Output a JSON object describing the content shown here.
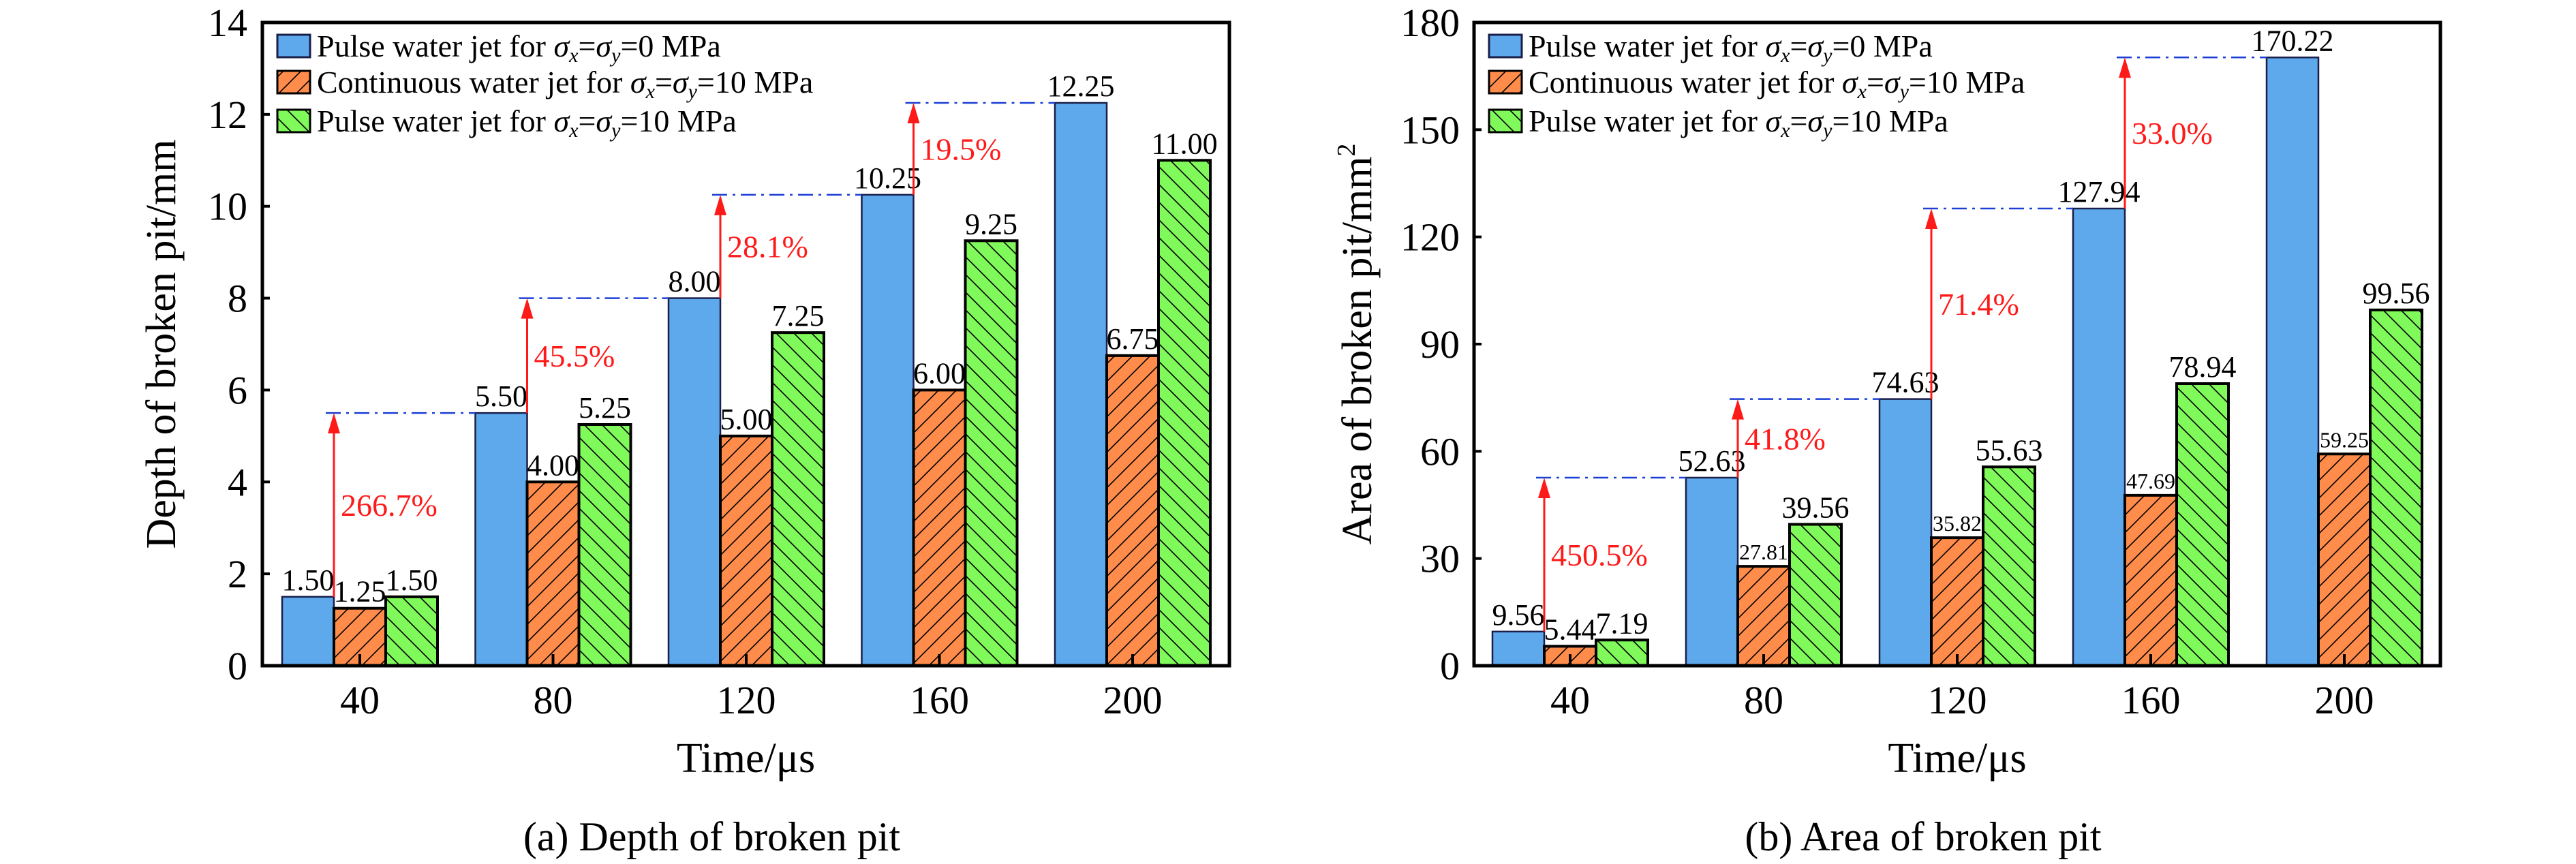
{
  "figure": {
    "panels": [
      "a",
      "b"
    ]
  },
  "chart_data": [
    {
      "id": "a",
      "type": "bar",
      "title": "",
      "caption": "(a) Depth of broken pit",
      "xlabel": "Time/μs",
      "ylabel": "Depth of broken pit/mm",
      "ylabel_superscript": "",
      "categories": [
        "40",
        "80",
        "120",
        "160",
        "200"
      ],
      "ylim": [
        0,
        14
      ],
      "yticks": [
        0,
        2,
        4,
        6,
        8,
        10,
        12,
        14
      ],
      "ytick_labels": [
        "0",
        "2",
        "4",
        "6",
        "8",
        "10",
        "12",
        "14"
      ],
      "grid": false,
      "legend_position": "top-left",
      "series": [
        {
          "name": "Pulse water jet for σx=σy=0 MPa",
          "legend_parts": {
            "prefix": "Pulse water jet for ",
            "value": "=0 MPa"
          },
          "color": "#5EA8EC",
          "hatch": "none",
          "values": [
            1.5,
            5.5,
            8.0,
            10.25,
            12.25
          ],
          "labels": [
            "1.50",
            "5.50",
            "8.00",
            "10.25",
            "12.25"
          ]
        },
        {
          "name": "Continuous water jet for σx=σy=10 MPa",
          "legend_parts": {
            "prefix": "Continuous water jet for ",
            "value": "=10 MPa"
          },
          "color": "#FF8C4A",
          "hatch": "forward",
          "values": [
            1.25,
            4.0,
            5.0,
            6.0,
            6.75
          ],
          "labels": [
            "1.25",
            "4.00",
            "5.00",
            "6.00",
            "6.75"
          ]
        },
        {
          "name": "Pulse water jet for σx=σy=10 MPa",
          "legend_parts": {
            "prefix": "Pulse water jet for ",
            "value": "=10 MPa"
          },
          "color": "#80F95A",
          "hatch": "backward",
          "values": [
            1.5,
            5.25,
            7.25,
            9.25,
            11.0
          ],
          "labels": [
            "1.50",
            "5.25",
            "7.25",
            "9.25",
            "11.00"
          ]
        }
      ],
      "annotations": [
        {
          "from_category": 0,
          "to_category": 1,
          "from_value": 1.5,
          "to_value": 5.5,
          "text": "266.7%"
        },
        {
          "from_category": 1,
          "to_category": 2,
          "from_value": 5.5,
          "to_value": 8.0,
          "text": "45.5%"
        },
        {
          "from_category": 2,
          "to_category": 3,
          "from_value": 8.0,
          "to_value": 10.25,
          "text": "28.1%"
        },
        {
          "from_category": 3,
          "to_category": 4,
          "from_value": 10.25,
          "to_value": 12.25,
          "text": "19.5%"
        }
      ],
      "small_orange_labels": false
    },
    {
      "id": "b",
      "type": "bar",
      "title": "",
      "caption": "(b) Area of broken pit",
      "xlabel": "Time/μs",
      "ylabel": "Area of broken pit/mm",
      "ylabel_superscript": "2",
      "categories": [
        "40",
        "80",
        "120",
        "160",
        "200"
      ],
      "ylim": [
        0,
        180
      ],
      "yticks": [
        0,
        30,
        60,
        90,
        120,
        150,
        180
      ],
      "ytick_labels": [
        "0",
        "30",
        "60",
        "90",
        "120",
        "150",
        "180"
      ],
      "grid": false,
      "legend_position": "top-left",
      "series": [
        {
          "name": "Pulse water jet for σx=σy=0 MPa",
          "legend_parts": {
            "prefix": "Pulse water jet for ",
            "value": "=0 MPa"
          },
          "color": "#5EA8EC",
          "hatch": "none",
          "values": [
            9.56,
            52.63,
            74.63,
            127.94,
            170.22
          ],
          "labels": [
            "9.56",
            "52.63",
            "74.63",
            "127.94",
            "170.22"
          ]
        },
        {
          "name": "Continuous water jet for σx=σy=10 MPa",
          "legend_parts": {
            "prefix": "Continuous water jet for ",
            "value": "=10 MPa"
          },
          "color": "#FF8C4A",
          "hatch": "forward",
          "values": [
            5.44,
            27.81,
            35.82,
            47.69,
            59.25
          ],
          "labels": [
            "5.44",
            "27.81",
            "35.82",
            "47.69",
            "59.25"
          ]
        },
        {
          "name": "Pulse water jet for σx=σy=10 MPa",
          "legend_parts": {
            "prefix": "Pulse water jet for ",
            "value": "=10 MPa"
          },
          "color": "#80F95A",
          "hatch": "backward",
          "values": [
            7.19,
            39.56,
            55.63,
            78.94,
            99.56
          ],
          "labels": [
            "7.19",
            "39.56",
            "55.63",
            "78.94",
            "99.56"
          ]
        }
      ],
      "annotations": [
        {
          "from_category": 0,
          "to_category": 1,
          "from_value": 9.56,
          "to_value": 52.63,
          "text": "450.5%"
        },
        {
          "from_category": 1,
          "to_category": 2,
          "from_value": 52.63,
          "to_value": 74.63,
          "text": "41.8%"
        },
        {
          "from_category": 2,
          "to_category": 3,
          "from_value": 74.63,
          "to_value": 127.94,
          "text": "71.4%"
        },
        {
          "from_category": 3,
          "to_category": 4,
          "from_value": 127.94,
          "to_value": 170.22,
          "text": "33.0%"
        }
      ],
      "small_orange_labels": true
    }
  ],
  "colors": {
    "arrow": "#ff1a1a",
    "guide_line": "#1a3fd6",
    "bar_stroke": "#000000",
    "blue_stroke": "#1a1f4a"
  }
}
